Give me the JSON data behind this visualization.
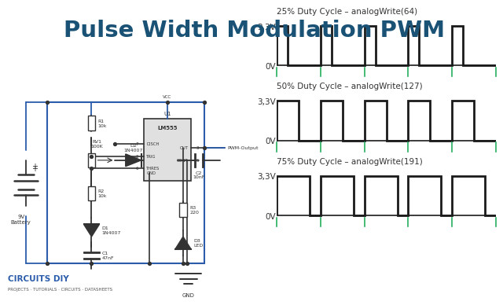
{
  "title": "Pulse Width Modulation PWM",
  "title_color": "#1a5276",
  "bg_color": "#ffffff",
  "waveforms": [
    {
      "duty": 0.25,
      "label": "25% Duty Cycle – analogWrite(64)",
      "ylabel_top": "3,3V",
      "ylabel_bot": "0V"
    },
    {
      "duty": 0.5,
      "label": "50% Duty Cycle – analogWrite(127)",
      "ylabel_top": "3,3V",
      "ylabel_bot": "0V"
    },
    {
      "duty": 0.75,
      "label": "75% Duty Cycle – analogWrite(191)",
      "ylabel_top": "3,3V",
      "ylabel_bot": "0V"
    }
  ],
  "wave_color": "#1a1a1a",
  "tick_color": "#27ae60",
  "wave_lw": 2.0,
  "tick_lw": 1.2,
  "n_cycles": 5,
  "circuit_wire_color": "#2a5caa",
  "component_color": "#333333",
  "logo_text": "CIRCUITS DIY",
  "logo_color": "#2a5caa"
}
